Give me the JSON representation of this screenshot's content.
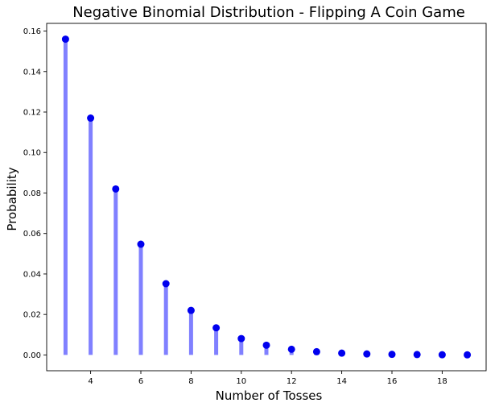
{
  "chart_data": {
    "type": "stem",
    "title": "Negative Binomial Distribution - Flipping A Coin Game",
    "xlabel": "Number of Tosses",
    "ylabel": "Probability",
    "x": [
      3,
      4,
      5,
      6,
      7,
      8,
      9,
      10,
      11,
      12,
      13,
      14,
      15,
      16,
      17,
      18,
      19
    ],
    "series": [
      {
        "values": [
          0.156,
          0.117,
          0.082,
          0.0547,
          0.0352,
          0.022,
          0.0134,
          0.0081,
          0.0048,
          0.0028,
          0.0016,
          0.0009,
          0.0005,
          0.0003,
          0.0002,
          0.0001,
          5e-05
        ],
        "marker_color": "#0000ee",
        "stem_color": "#8080ff"
      }
    ],
    "xlim": [
      2.25,
      19.75
    ],
    "ylim": [
      -0.0078,
      0.1638
    ],
    "xticks": [
      4,
      6,
      8,
      10,
      12,
      14,
      16,
      18
    ],
    "yticks": [
      0.0,
      0.02,
      0.04,
      0.06,
      0.08,
      0.1,
      0.12,
      0.14,
      0.16
    ],
    "xtick_labels": [
      "4",
      "6",
      "8",
      "10",
      "12",
      "14",
      "16",
      "18"
    ],
    "ytick_labels": [
      "0.00",
      "0.02",
      "0.04",
      "0.06",
      "0.08",
      "0.10",
      "0.12",
      "0.14",
      "0.16"
    ],
    "grid": false,
    "legend": false
  }
}
